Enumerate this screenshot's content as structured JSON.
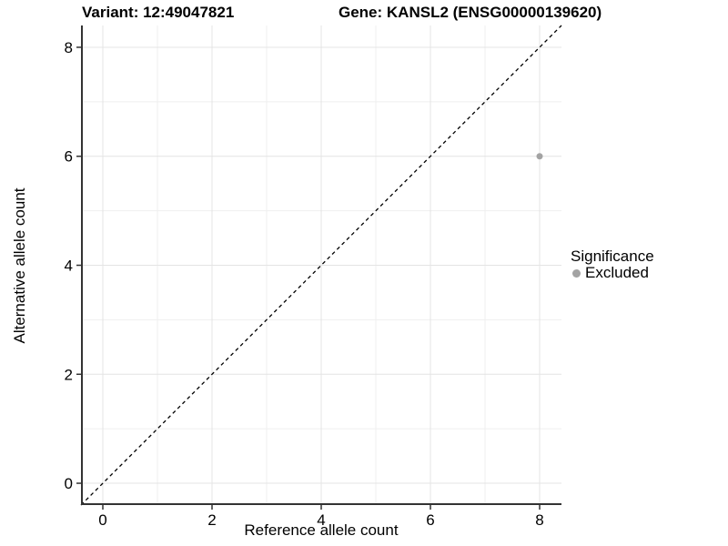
{
  "titles": {
    "variant": "Variant: 12:49047821",
    "gene": "Gene: KANSL2 (ENSG00000139620)"
  },
  "chart_data": {
    "type": "scatter",
    "title_left": "Variant: 12:49047821",
    "title_right": "Gene: KANSL2 (ENSG00000139620)",
    "xlabel": "Reference allele count",
    "ylabel": "Alternative allele count",
    "xlim": [
      -0.4,
      8.4
    ],
    "ylim": [
      -0.4,
      8.4
    ],
    "x_ticks": [
      0,
      2,
      4,
      6,
      8
    ],
    "y_ticks": [
      0,
      2,
      4,
      6,
      8
    ],
    "x_minor_ticks": [
      1,
      3,
      5,
      7
    ],
    "y_minor_ticks": [
      1,
      3,
      5,
      7
    ],
    "grid": "on",
    "reference_line": {
      "type": "identity",
      "equation": "y = x",
      "style": "dashed",
      "color": "#000000"
    },
    "series": [
      {
        "name": "Excluded",
        "color": "#a3a3a3",
        "points": [
          {
            "x": 8,
            "y": 6
          }
        ]
      }
    ],
    "legend": {
      "title": "Significance",
      "position": "right",
      "entries": [
        {
          "label": "Excluded",
          "color": "#a3a3a3"
        }
      ]
    }
  },
  "style_colors": {
    "major_grid": "#e4e4e4",
    "minor_grid": "#efefef",
    "axis_line": "#333333",
    "tick": "#333333",
    "text": "#000000",
    "background": "#ffffff"
  }
}
